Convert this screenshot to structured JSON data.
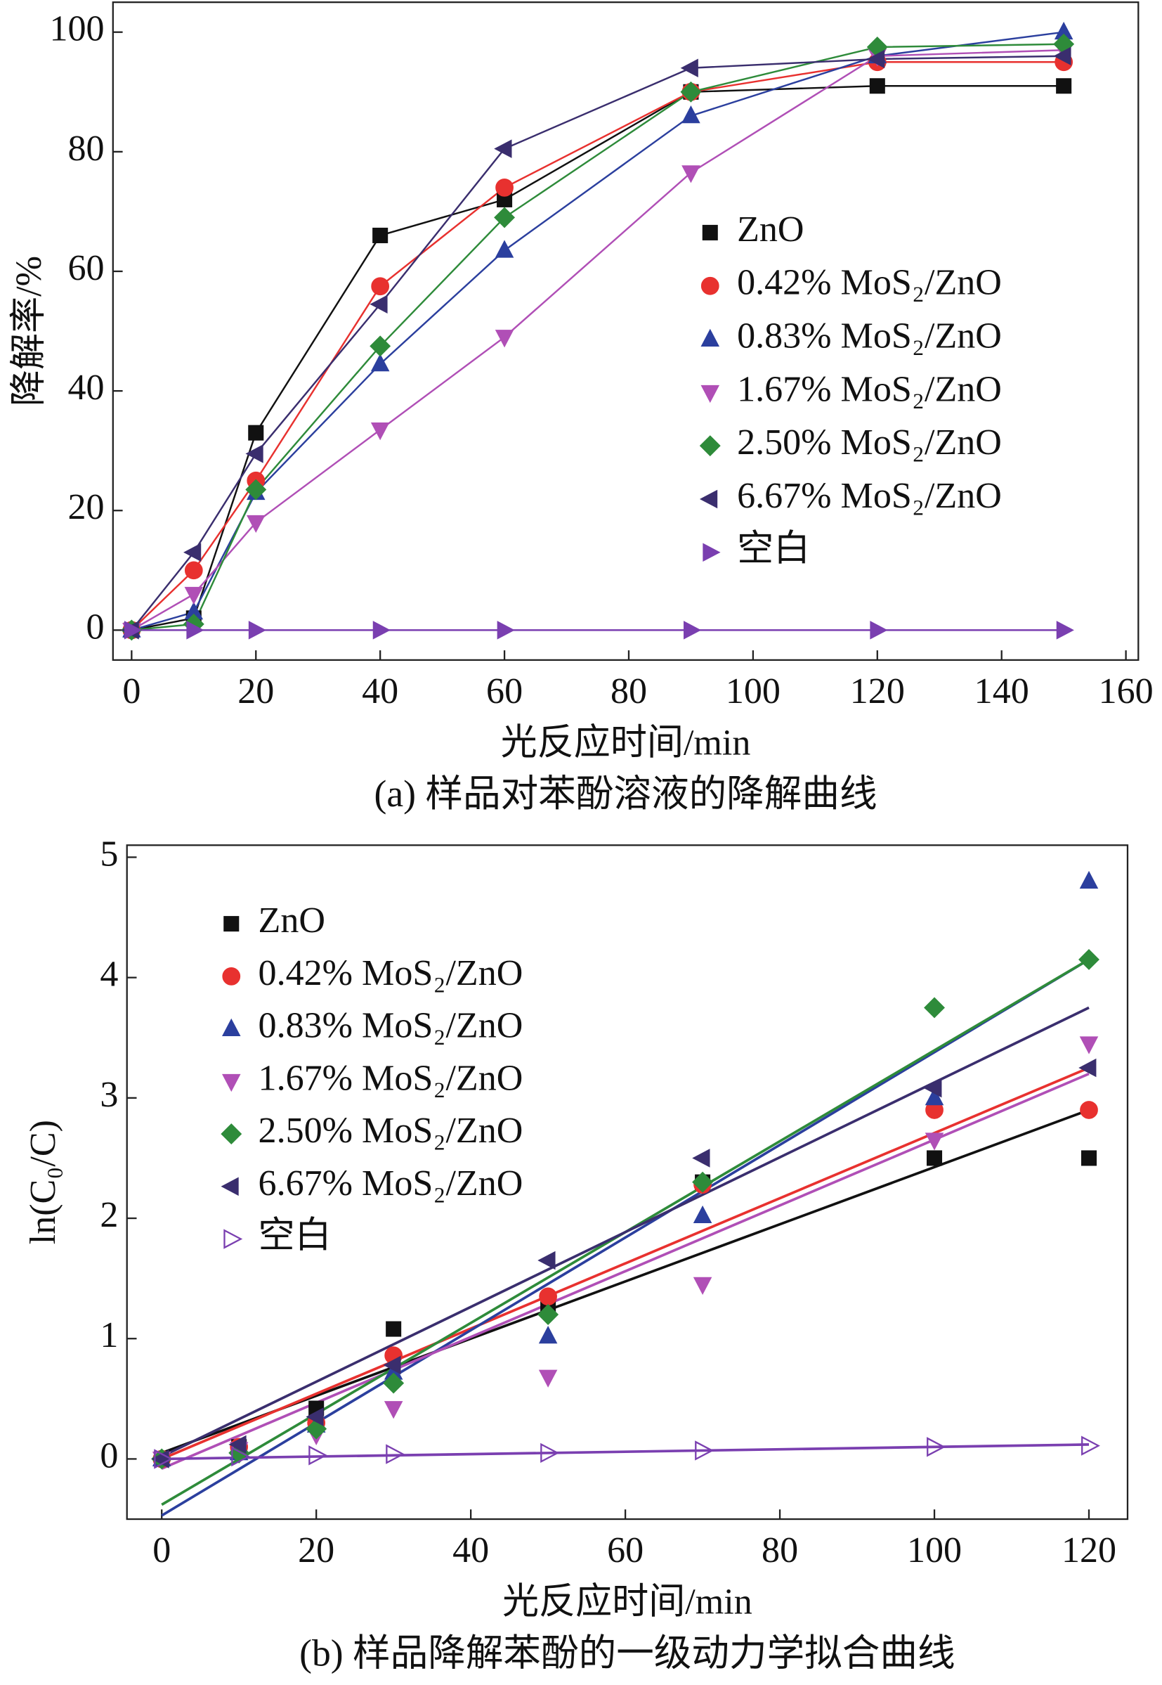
{
  "chart_data": [
    {
      "type": "line",
      "x_label": "光反应时间/min",
      "y_label": "降解率/%",
      "caption": "(a) 样品对苯酚溶液的降解曲线",
      "xlim": [
        -3,
        162
      ],
      "ylim": [
        -5,
        105
      ],
      "xticks": [
        0,
        20,
        40,
        60,
        80,
        100,
        120,
        140,
        160
      ],
      "yticks": [
        0,
        20,
        40,
        60,
        80,
        100
      ],
      "legend": "center right",
      "x": [
        0,
        10,
        20,
        40,
        60,
        90,
        120,
        150
      ],
      "series": [
        {
          "name": "ZnO",
          "color": "#111111",
          "marker": "square",
          "values": [
            0,
            2,
            33,
            66,
            72,
            90,
            91,
            91
          ]
        },
        {
          "name": "0.42% MoS₂/ZnO",
          "color": "#e8312f",
          "marker": "circle",
          "values": [
            0,
            10,
            25,
            57.5,
            74,
            90,
            95,
            95
          ]
        },
        {
          "name": "0.83% MoS₂/ZnO",
          "color": "#2b3f9e",
          "marker": "triangle-up",
          "values": [
            0,
            3,
            23,
            44.5,
            63.5,
            86,
            96,
            100
          ]
        },
        {
          "name": "1.67% MoS₂/ZnO",
          "color": "#b04fb6",
          "marker": "triangle-down",
          "values": [
            0,
            6,
            18,
            33.5,
            49,
            76.5,
            96,
            97
          ]
        },
        {
          "name": "2.50% MoS₂/ZnO",
          "color": "#2e8b3a",
          "marker": "diamond",
          "values": [
            0,
            1,
            23.5,
            47.5,
            69,
            90,
            97.5,
            98
          ]
        },
        {
          "name": "6.67% MoS₂/ZnO",
          "color": "#3a2e6e",
          "marker": "triangle-left",
          "values": [
            0,
            13,
            29.5,
            54.5,
            80.5,
            94,
            95.5,
            96
          ]
        },
        {
          "name": "空白",
          "color": "#7a3fb0",
          "marker": "triangle-right",
          "values": [
            0,
            0,
            0,
            0,
            0,
            0,
            0,
            0
          ]
        }
      ]
    },
    {
      "type": "scatter",
      "x_label": "光反应时间/min",
      "y_label": "ln(C₀/C)",
      "caption": "(b) 样品降解苯酚的一级动力学拟合曲线",
      "xlim": [
        -4.5,
        125
      ],
      "ylim": [
        -0.5,
        5.1
      ],
      "xticks": [
        0,
        20,
        40,
        60,
        80,
        100,
        120
      ],
      "yticks": [
        0,
        1,
        2,
        3,
        4,
        5
      ],
      "legend": "upper left",
      "x": [
        0,
        10,
        20,
        30,
        50,
        70,
        100,
        120
      ],
      "fit_x": [
        0,
        120
      ],
      "series": [
        {
          "name": "ZnO",
          "color": "#111111",
          "marker": "square",
          "values": [
            0,
            0.1,
            0.42,
            1.08,
            1.25,
            2.3,
            2.5,
            2.5
          ],
          "fit": [
            0.05,
            2.9
          ]
        },
        {
          "name": "0.42% MoS₂/ZnO",
          "color": "#e8312f",
          "marker": "circle",
          "values": [
            0,
            0.1,
            0.3,
            0.86,
            1.35,
            2.28,
            2.9,
            2.9
          ],
          "fit": [
            0,
            3.25
          ]
        },
        {
          "name": "0.83% MoS₂/ZnO",
          "color": "#2b3f9e",
          "marker": "triangle-up",
          "values": [
            0,
            0.05,
            0.28,
            0.72,
            1.02,
            2.02,
            3.0,
            4.8
          ],
          "fit": [
            -0.47,
            4.15
          ]
        },
        {
          "name": "1.67% MoS₂/ZnO",
          "color": "#b04fb6",
          "marker": "triangle-down",
          "values": [
            0,
            0.08,
            0.2,
            0.42,
            0.68,
            1.45,
            2.65,
            3.45
          ],
          "fit": [
            -0.08,
            3.2
          ]
        },
        {
          "name": "2.50% MoS₂/ZnO",
          "color": "#2e8b3a",
          "marker": "diamond",
          "values": [
            0,
            0.05,
            0.25,
            0.63,
            1.2,
            2.3,
            3.75,
            4.15
          ],
          "fit": [
            -0.38,
            4.15
          ]
        },
        {
          "name": "6.67% MoS₂/ZnO",
          "color": "#3a2e6e",
          "marker": "triangle-left",
          "values": [
            0,
            0.12,
            0.35,
            0.78,
            1.65,
            2.5,
            3.08,
            3.25
          ],
          "fit": [
            0.02,
            3.75
          ]
        },
        {
          "name": "空白",
          "color": "#7a3fb0",
          "marker": "triangle-right",
          "hollow": true,
          "values": [
            0,
            0.02,
            0.03,
            0.04,
            0.05,
            0.07,
            0.1,
            0.11
          ],
          "fit": [
            0,
            0.12
          ]
        }
      ]
    }
  ]
}
